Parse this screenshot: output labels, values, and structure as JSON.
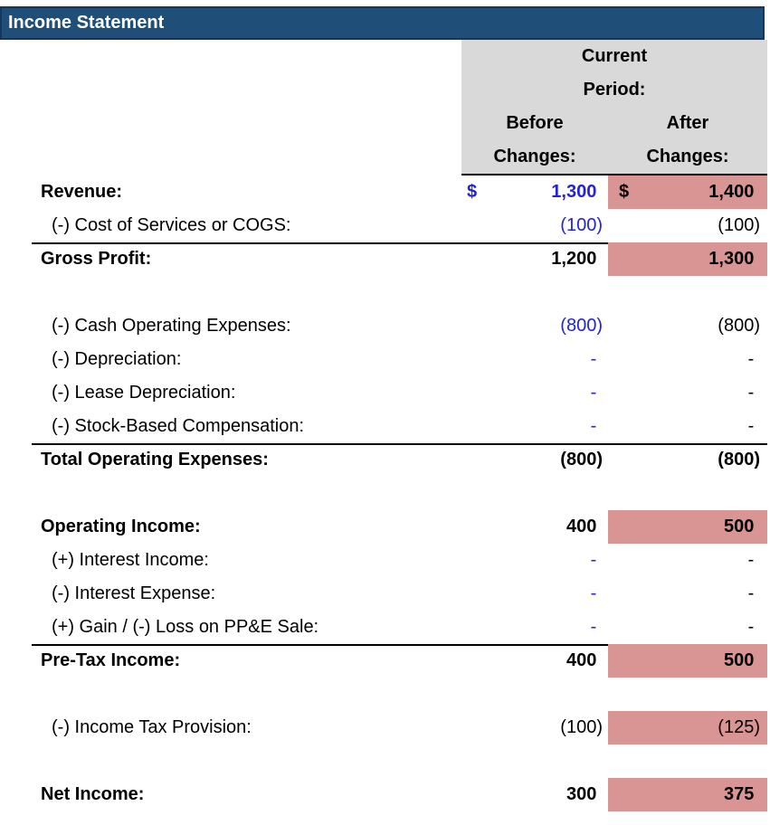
{
  "title": "Income Statement",
  "header": {
    "current": "Current",
    "period": "Period:",
    "before": "Before",
    "before_changes": "Changes:",
    "after": "After",
    "after_changes": "Changes:"
  },
  "colors": {
    "title_bar": "#1F4E79",
    "title_border": "#16365C",
    "header_bg": "#D9D9D9",
    "highlight": "#D99594",
    "input_text": "#2222DD",
    "body_text": "#000000"
  },
  "rows": [
    {
      "label": "Revenue:",
      "bold": true,
      "before": {
        "value": "1,300",
        "blue": true,
        "bold": true,
        "currency": "$"
      },
      "after": {
        "value": "1,400",
        "bold": true,
        "highlight": true,
        "currency": "$"
      }
    },
    {
      "label": "(-) Cost of Services or COGS:",
      "indent": true,
      "before": {
        "value": "(100)",
        "blue": true
      },
      "after": {
        "value": "(100)"
      }
    },
    {
      "label": "Gross Profit:",
      "bold": true,
      "border_top": true,
      "before": {
        "value": "1,200",
        "bold": true
      },
      "after": {
        "value": "1,300",
        "bold": true,
        "highlight": true
      }
    },
    {
      "spacer": true
    },
    {
      "label": "(-) Cash Operating Expenses:",
      "indent": true,
      "before": {
        "value": "(800)",
        "blue": true
      },
      "after": {
        "value": "(800)"
      }
    },
    {
      "label": "(-) Depreciation:",
      "indent": true,
      "before": {
        "value": "-",
        "blue": true
      },
      "after": {
        "value": "-"
      }
    },
    {
      "label": "(-) Lease Depreciation:",
      "indent": true,
      "before": {
        "value": "-",
        "blue": true
      },
      "after": {
        "value": "-"
      }
    },
    {
      "label": "(-) Stock-Based Compensation:",
      "indent": true,
      "before": {
        "value": "-",
        "blue": true
      },
      "after": {
        "value": "-"
      }
    },
    {
      "label": "Total Operating Expenses:",
      "bold": true,
      "border_top": true,
      "before": {
        "value": "(800)",
        "bold": true
      },
      "after": {
        "value": "(800)",
        "bold": true
      }
    },
    {
      "spacer": true
    },
    {
      "label": "Operating Income:",
      "bold": true,
      "before": {
        "value": "400",
        "bold": true
      },
      "after": {
        "value": "500",
        "bold": true,
        "highlight": true
      }
    },
    {
      "label": "(+) Interest Income:",
      "indent": true,
      "before": {
        "value": "-",
        "blue": true
      },
      "after": {
        "value": "-"
      }
    },
    {
      "label": "(-) Interest Expense:",
      "indent": true,
      "before": {
        "value": "-",
        "blue": true
      },
      "after": {
        "value": "-"
      }
    },
    {
      "label": "(+) Gain / (-) Loss on PP&E Sale:",
      "indent": true,
      "before": {
        "value": "-",
        "blue": true
      },
      "after": {
        "value": "-"
      }
    },
    {
      "label": "Pre-Tax Income:",
      "bold": true,
      "border_top": true,
      "before": {
        "value": "400",
        "bold": true
      },
      "after": {
        "value": "500",
        "bold": true,
        "highlight": true
      }
    },
    {
      "spacer": true
    },
    {
      "label": "(-) Income Tax Provision:",
      "indent": true,
      "before": {
        "value": "(100)"
      },
      "after": {
        "value": "(125)",
        "highlight": true
      }
    },
    {
      "spacer": true
    },
    {
      "label": "Net Income:",
      "bold": true,
      "before": {
        "value": "300",
        "bold": true
      },
      "after": {
        "value": "375",
        "bold": true,
        "highlight": true
      }
    }
  ]
}
